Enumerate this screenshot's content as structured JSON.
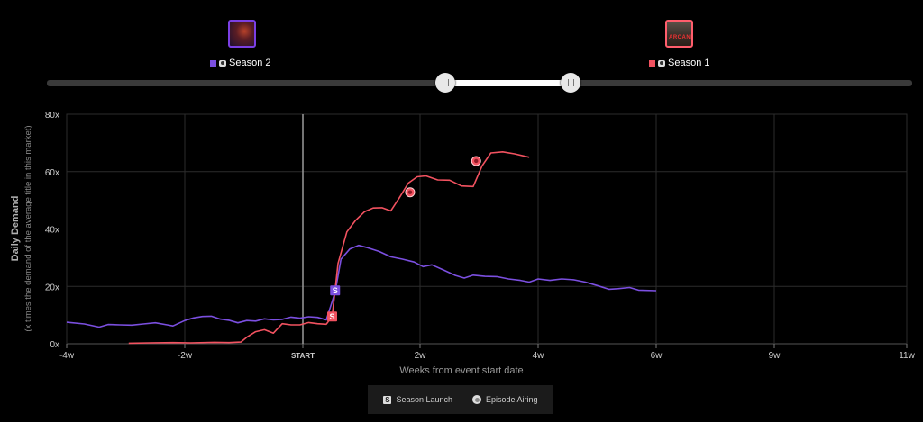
{
  "colors": {
    "season2": "#7b4fe0",
    "season1": "#f25260",
    "grid": "#2c2c2c",
    "axis": "#6a6a6a"
  },
  "series_header": {
    "season2": {
      "label": "Season 2"
    },
    "season1": {
      "label": "Season 1",
      "poster_text": "ARCANE"
    }
  },
  "legend_key": {
    "launch_label": "Season Launch",
    "launch_glyph": "S",
    "episode_label": "Episode Airing"
  },
  "chart_data": {
    "type": "line",
    "ylabel": "Daily Demand",
    "ylabel_sub": "(x times the demand of the average title in this market)",
    "xlabel": "Weeks from event start date",
    "xlim": [
      -4,
      11
    ],
    "ylim": [
      0,
      80
    ],
    "x_ticks": [
      {
        "value": -4,
        "label": "-4w"
      },
      {
        "value": -2,
        "label": "-2w"
      },
      {
        "value": 0,
        "label": "START"
      },
      {
        "value": 2,
        "label": "2w"
      },
      {
        "value": 4,
        "label": "4w"
      },
      {
        "value": 6,
        "label": "6w"
      },
      {
        "value": 9,
        "label": "9w"
      },
      {
        "value": 11,
        "label": "11w"
      }
    ],
    "y_ticks": [
      {
        "value": 0,
        "label": "0x"
      },
      {
        "value": 20,
        "label": "20x"
      },
      {
        "value": 40,
        "label": "40x"
      },
      {
        "value": 60,
        "label": "60x"
      },
      {
        "value": 80,
        "label": "80x"
      }
    ],
    "series": [
      {
        "key": "season2",
        "points": [
          [
            -4.0,
            7.5
          ],
          [
            -3.7,
            6.9
          ],
          [
            -3.45,
            5.8
          ],
          [
            -3.3,
            6.7
          ],
          [
            -3.1,
            6.6
          ],
          [
            -2.9,
            6.5
          ],
          [
            -2.7,
            6.9
          ],
          [
            -2.5,
            7.3
          ],
          [
            -2.3,
            6.6
          ],
          [
            -2.2,
            6.2
          ],
          [
            -2.0,
            8.1
          ],
          [
            -1.85,
            9.0
          ],
          [
            -1.7,
            9.5
          ],
          [
            -1.55,
            9.6
          ],
          [
            -1.4,
            8.6
          ],
          [
            -1.25,
            8.2
          ],
          [
            -1.1,
            7.3
          ],
          [
            -0.95,
            8.1
          ],
          [
            -0.8,
            7.9
          ],
          [
            -0.65,
            8.7
          ],
          [
            -0.5,
            8.3
          ],
          [
            -0.35,
            8.5
          ],
          [
            -0.2,
            9.3
          ],
          [
            -0.05,
            8.9
          ],
          [
            0.1,
            9.4
          ],
          [
            0.25,
            9.2
          ],
          [
            0.4,
            8.3
          ],
          [
            0.55,
            18.0
          ],
          [
            0.65,
            29.5
          ],
          [
            0.8,
            33.0
          ],
          [
            0.95,
            34.3
          ],
          [
            1.1,
            33.5
          ],
          [
            1.3,
            32.2
          ],
          [
            1.5,
            30.3
          ],
          [
            1.7,
            29.5
          ],
          [
            1.9,
            28.5
          ],
          [
            2.05,
            26.9
          ],
          [
            2.2,
            27.5
          ],
          [
            2.4,
            25.7
          ],
          [
            2.6,
            23.8
          ],
          [
            2.75,
            22.9
          ],
          [
            2.9,
            23.9
          ],
          [
            3.1,
            23.5
          ],
          [
            3.3,
            23.4
          ],
          [
            3.5,
            22.6
          ],
          [
            3.7,
            22.1
          ],
          [
            3.85,
            21.5
          ],
          [
            4.0,
            22.6
          ],
          [
            4.2,
            22.1
          ],
          [
            4.4,
            22.6
          ],
          [
            4.6,
            22.3
          ],
          [
            4.8,
            21.5
          ],
          [
            5.0,
            20.3
          ],
          [
            5.2,
            19.0
          ],
          [
            5.35,
            19.2
          ],
          [
            5.55,
            19.6
          ],
          [
            5.7,
            18.7
          ],
          [
            6.0,
            18.5
          ]
        ],
        "markers": [
          {
            "type": "launch",
            "x": 0.55,
            "y": 18.6,
            "glyph": "S"
          }
        ]
      },
      {
        "key": "season1",
        "points": [
          [
            -2.95,
            0.2
          ],
          [
            -2.6,
            0.3
          ],
          [
            -2.2,
            0.4
          ],
          [
            -1.9,
            0.3
          ],
          [
            -1.5,
            0.5
          ],
          [
            -1.25,
            0.4
          ],
          [
            -1.05,
            0.6
          ],
          [
            -0.95,
            2.3
          ],
          [
            -0.8,
            4.2
          ],
          [
            -0.65,
            4.9
          ],
          [
            -0.5,
            3.7
          ],
          [
            -0.35,
            7.0
          ],
          [
            -0.2,
            6.6
          ],
          [
            -0.05,
            6.6
          ],
          [
            0.1,
            7.4
          ],
          [
            0.25,
            7.0
          ],
          [
            0.4,
            6.8
          ],
          [
            0.5,
            9.5
          ],
          [
            0.6,
            28.0
          ],
          [
            0.75,
            39.0
          ],
          [
            0.9,
            43.0
          ],
          [
            1.05,
            46.0
          ],
          [
            1.2,
            47.3
          ],
          [
            1.35,
            47.4
          ],
          [
            1.5,
            46.3
          ],
          [
            1.65,
            51.0
          ],
          [
            1.8,
            56.0
          ],
          [
            1.95,
            58.2
          ],
          [
            2.1,
            58.5
          ],
          [
            2.3,
            57.1
          ],
          [
            2.5,
            57.0
          ],
          [
            2.7,
            55.0
          ],
          [
            2.9,
            54.8
          ],
          [
            3.05,
            62.0
          ],
          [
            3.2,
            66.5
          ],
          [
            3.4,
            66.9
          ],
          [
            3.6,
            66.2
          ],
          [
            3.85,
            65.0
          ]
        ],
        "markers": [
          {
            "type": "launch",
            "x": 0.5,
            "y": 9.5,
            "glyph": "S"
          },
          {
            "type": "episode",
            "x": 1.83,
            "y": 52.8
          },
          {
            "type": "episode",
            "x": 2.95,
            "y": 63.7
          }
        ]
      }
    ]
  }
}
